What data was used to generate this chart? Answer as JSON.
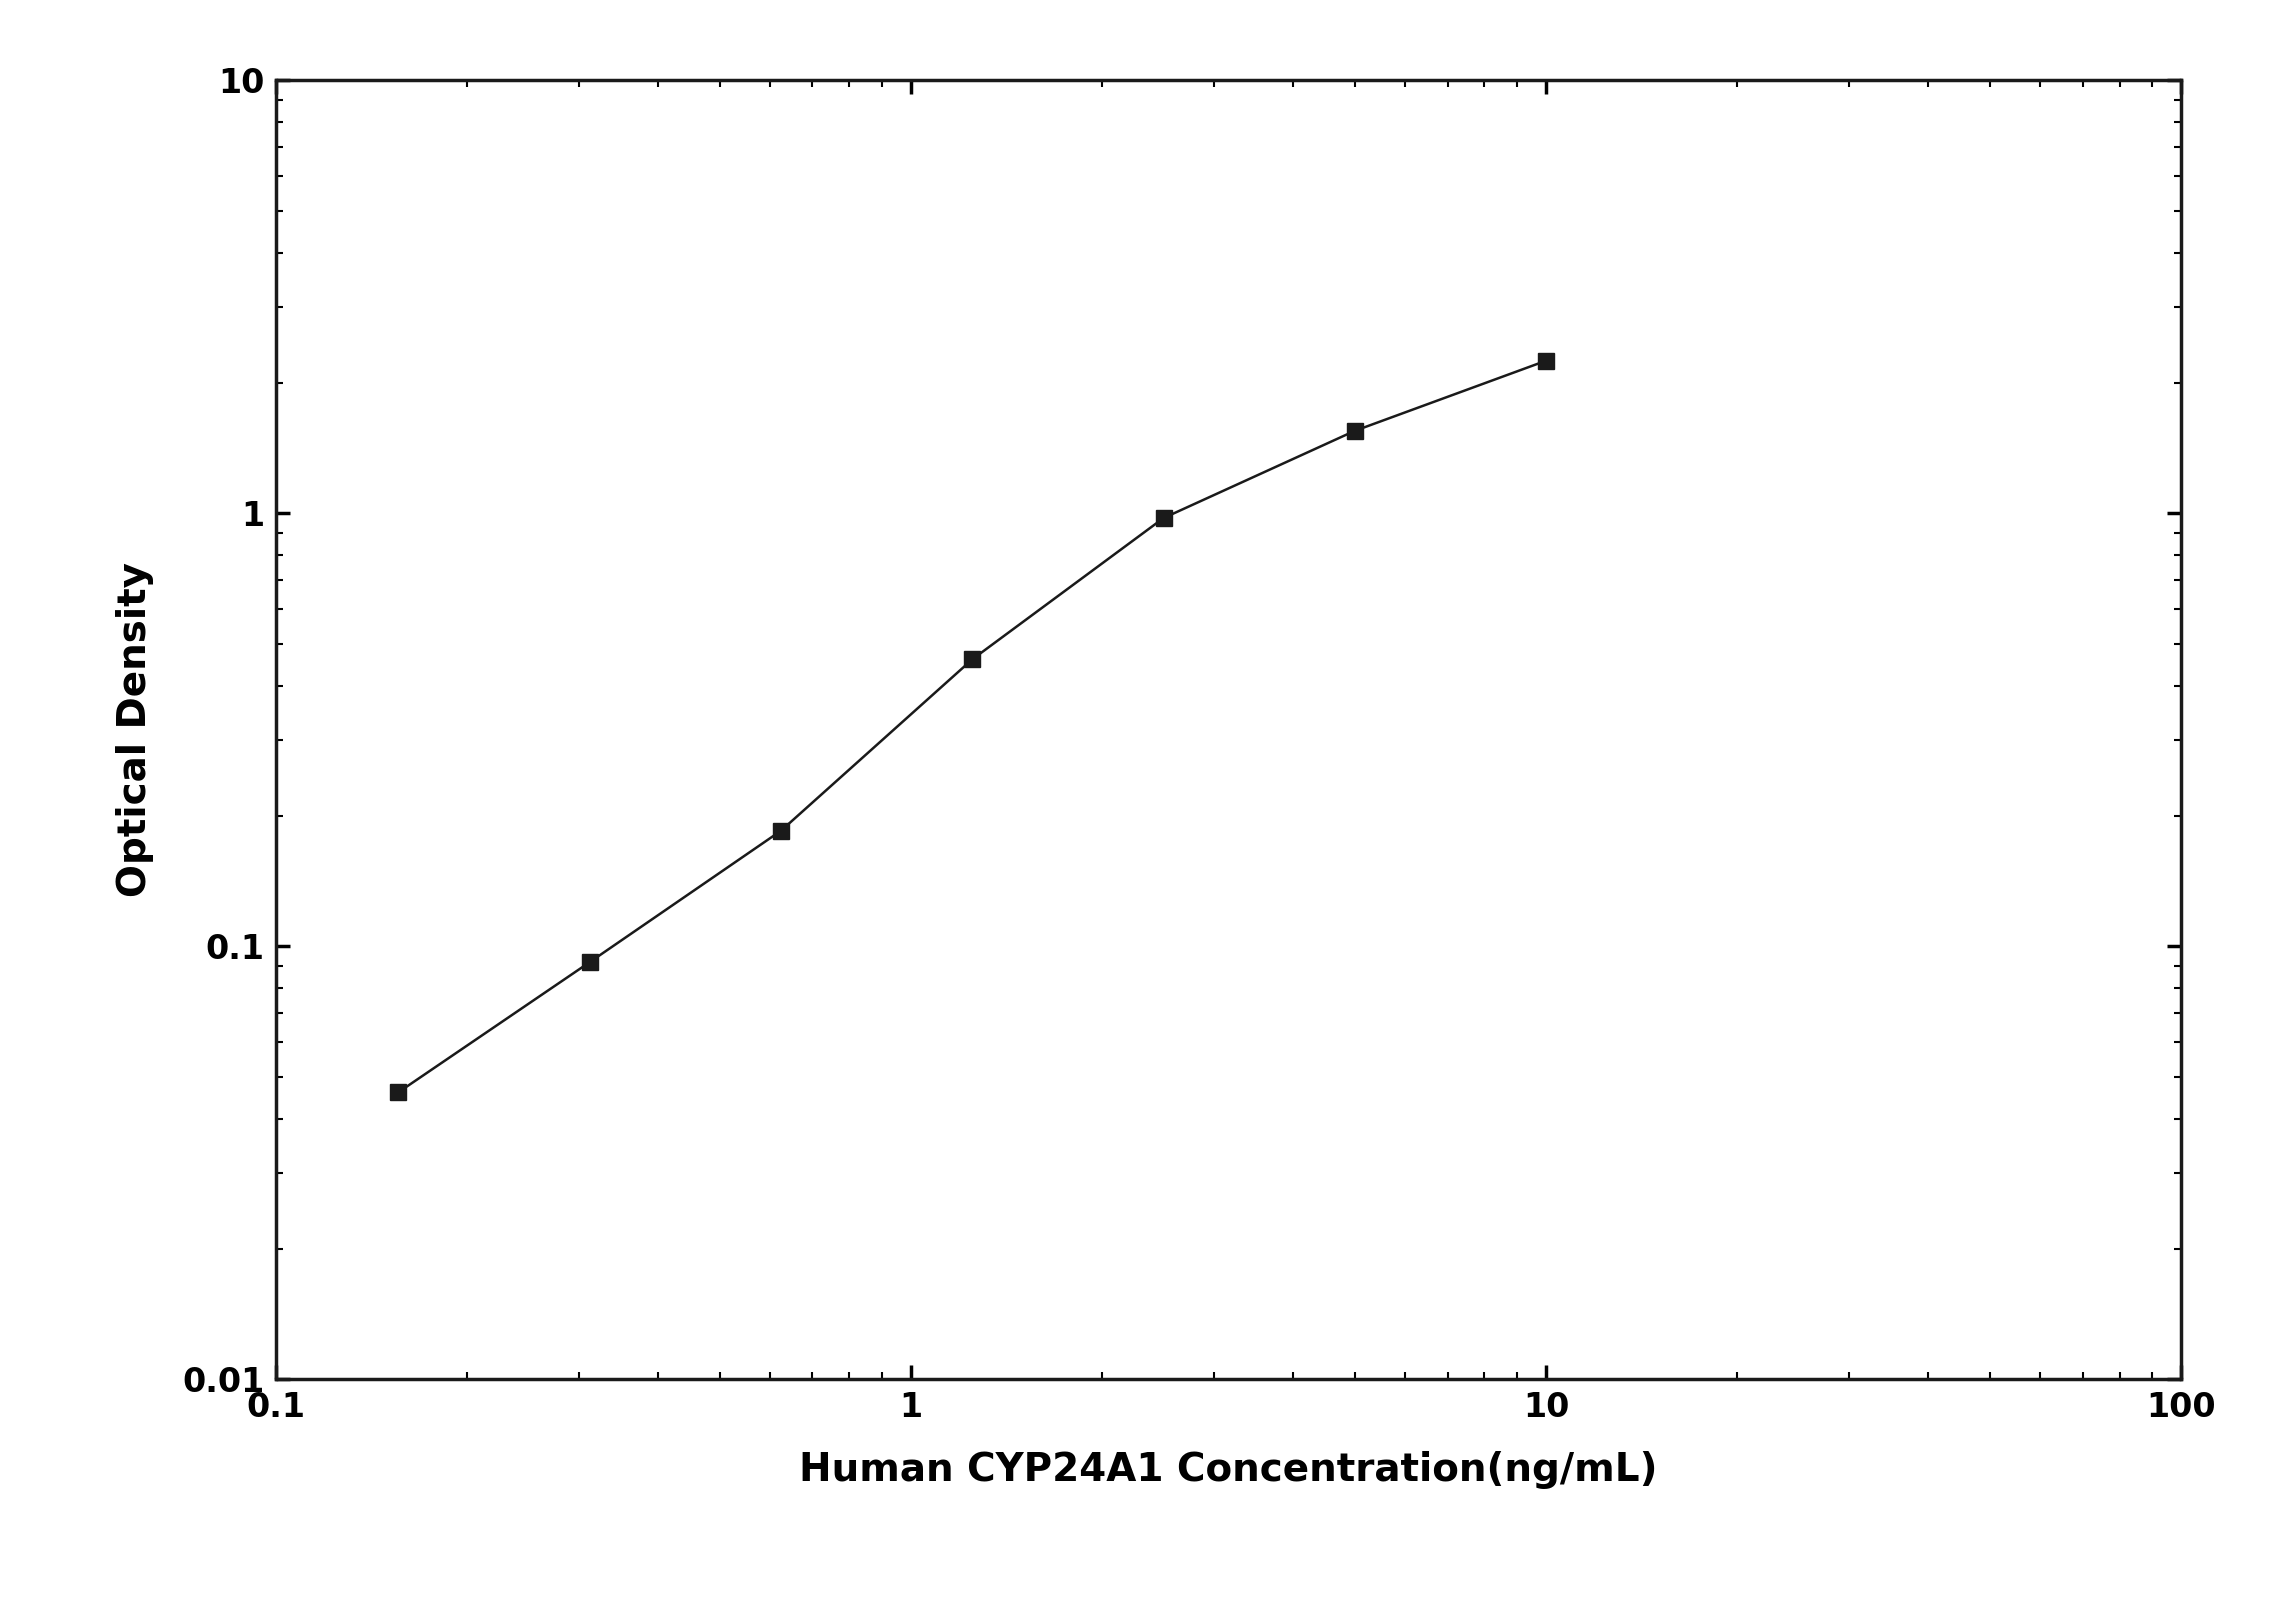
{
  "x": [
    0.156,
    0.3125,
    0.625,
    1.25,
    2.5,
    5.0,
    10.0
  ],
  "y": [
    0.046,
    0.092,
    0.185,
    0.46,
    0.975,
    1.55,
    2.25
  ],
  "xlabel": "Human CYP24A1 Concentration(ng/mL)",
  "ylabel": "Optical Density",
  "xlim": [
    0.1,
    100
  ],
  "ylim": [
    0.01,
    10
  ],
  "line_color": "#1a1a1a",
  "marker": "s",
  "marker_color": "#1a1a1a",
  "marker_size": 12,
  "linewidth": 1.8,
  "xlabel_fontsize": 28,
  "ylabel_fontsize": 28,
  "tick_fontsize": 24,
  "background_color": "#ffffff",
  "x_tick_labels": [
    "0.1",
    "1",
    "10",
    "100"
  ],
  "x_tick_values": [
    0.1,
    1,
    10,
    100
  ],
  "y_tick_labels": [
    "0.01",
    "0.1",
    "1",
    "10"
  ],
  "y_tick_values": [
    0.01,
    0.1,
    1,
    10
  ]
}
